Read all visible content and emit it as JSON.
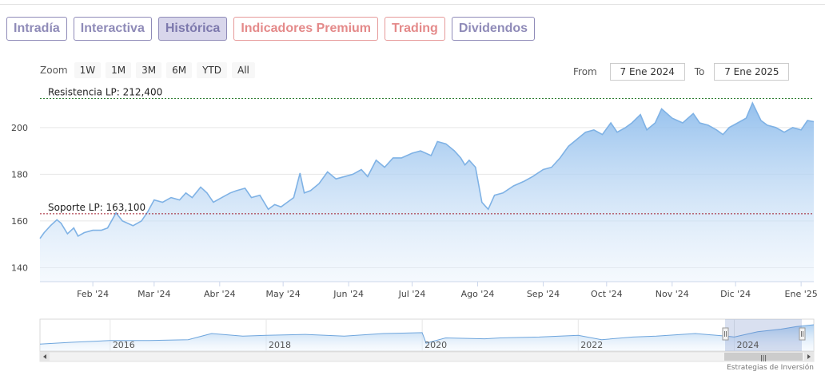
{
  "tabs": [
    {
      "label": "Intradía",
      "style": "normal"
    },
    {
      "label": "Interactiva",
      "style": "normal"
    },
    {
      "label": "Histórica",
      "style": "active"
    },
    {
      "label": "Indicadores Premium",
      "style": "premium"
    },
    {
      "label": "Trading",
      "style": "premium"
    },
    {
      "label": "Dividendos",
      "style": "normal"
    }
  ],
  "zoom": {
    "label": "Zoom",
    "buttons": [
      "1W",
      "1M",
      "3M",
      "6M",
      "YTD",
      "All"
    ]
  },
  "range": {
    "from_label": "From",
    "from_value": "7 Ene 2024",
    "to_label": "To",
    "to_value": "7 Ene 2025"
  },
  "credit": "Estrategias de Inversión",
  "colors": {
    "line": "#7fb2e5",
    "fill_top": "#90c0ef",
    "resistance": "#2e7d32",
    "support": "#a0192a"
  },
  "chart_data": {
    "type": "area",
    "title": "",
    "xlabel": "",
    "ylabel": "",
    "ylim": [
      134,
      216
    ],
    "yticks": [
      140,
      160,
      180,
      200
    ],
    "x_range": [
      "2024-01-07",
      "2025-01-07"
    ],
    "x_ticks": [
      {
        "date": "2024-02-01",
        "label": "Feb '24"
      },
      {
        "date": "2024-03-01",
        "label": "Mar '24"
      },
      {
        "date": "2024-04-01",
        "label": "Abr '24"
      },
      {
        "date": "2024-05-01",
        "label": "May '24"
      },
      {
        "date": "2024-06-01",
        "label": "Jun '24"
      },
      {
        "date": "2024-07-01",
        "label": "Jul '24"
      },
      {
        "date": "2024-08-01",
        "label": "Ago '24"
      },
      {
        "date": "2024-09-01",
        "label": "Sep '24"
      },
      {
        "date": "2024-10-01",
        "label": "Oct '24"
      },
      {
        "date": "2024-11-01",
        "label": "Nov '24"
      },
      {
        "date": "2024-12-01",
        "label": "Dic '24"
      },
      {
        "date": "2025-01-01",
        "label": "Ene '25"
      }
    ],
    "annotations": [
      {
        "label": "Resistencia LP: 212,400",
        "value": 212.4,
        "color": "resistance"
      },
      {
        "label": "Soporte LP: 163,100",
        "value": 163.1,
        "color": "support"
      }
    ],
    "series": [
      {
        "points": [
          [
            "2024-01-07",
            152.5
          ],
          [
            "2024-01-09",
            155
          ],
          [
            "2024-01-12",
            158
          ],
          [
            "2024-01-15",
            160.5
          ],
          [
            "2024-01-17",
            159
          ],
          [
            "2024-01-20",
            154.5
          ],
          [
            "2024-01-23",
            157
          ],
          [
            "2024-01-25",
            153.5
          ],
          [
            "2024-01-28",
            155
          ],
          [
            "2024-02-01",
            156
          ],
          [
            "2024-02-05",
            156
          ],
          [
            "2024-02-08",
            157
          ],
          [
            "2024-02-12",
            163.5
          ],
          [
            "2024-02-15",
            160
          ],
          [
            "2024-02-20",
            158
          ],
          [
            "2024-02-24",
            160
          ],
          [
            "2024-02-27",
            164
          ],
          [
            "2024-03-01",
            169
          ],
          [
            "2024-03-05",
            168
          ],
          [
            "2024-03-09",
            170
          ],
          [
            "2024-03-13",
            169
          ],
          [
            "2024-03-16",
            172
          ],
          [
            "2024-03-19",
            170
          ],
          [
            "2024-03-23",
            174.5
          ],
          [
            "2024-03-26",
            172
          ],
          [
            "2024-03-29",
            168
          ],
          [
            "2024-04-02",
            170
          ],
          [
            "2024-04-06",
            172
          ],
          [
            "2024-04-09",
            173
          ],
          [
            "2024-04-13",
            174
          ],
          [
            "2024-04-16",
            170
          ],
          [
            "2024-04-20",
            171
          ],
          [
            "2024-04-24",
            165
          ],
          [
            "2024-04-27",
            167
          ],
          [
            "2024-04-30",
            166
          ],
          [
            "2024-05-03",
            168
          ],
          [
            "2024-05-06",
            170
          ],
          [
            "2024-05-09",
            180.5
          ],
          [
            "2024-05-11",
            172
          ],
          [
            "2024-05-14",
            173
          ],
          [
            "2024-05-18",
            176
          ],
          [
            "2024-05-22",
            181
          ],
          [
            "2024-05-26",
            178
          ],
          [
            "2024-05-30",
            179
          ],
          [
            "2024-06-03",
            180
          ],
          [
            "2024-06-07",
            182
          ],
          [
            "2024-06-10",
            179
          ],
          [
            "2024-06-14",
            186
          ],
          [
            "2024-06-18",
            183
          ],
          [
            "2024-06-22",
            187
          ],
          [
            "2024-06-26",
            187
          ],
          [
            "2024-07-01",
            189
          ],
          [
            "2024-07-05",
            190
          ],
          [
            "2024-07-10",
            188
          ],
          [
            "2024-07-13",
            194
          ],
          [
            "2024-07-17",
            193
          ],
          [
            "2024-07-21",
            190
          ],
          [
            "2024-07-24",
            187
          ],
          [
            "2024-07-26",
            184
          ],
          [
            "2024-07-28",
            186
          ],
          [
            "2024-07-31",
            183
          ],
          [
            "2024-08-03",
            168
          ],
          [
            "2024-08-06",
            165
          ],
          [
            "2024-08-09",
            171
          ],
          [
            "2024-08-13",
            172
          ],
          [
            "2024-08-18",
            175
          ],
          [
            "2024-08-23",
            177
          ],
          [
            "2024-08-27",
            179
          ],
          [
            "2024-09-01",
            182
          ],
          [
            "2024-09-05",
            183
          ],
          [
            "2024-09-09",
            187
          ],
          [
            "2024-09-13",
            192
          ],
          [
            "2024-09-17",
            195
          ],
          [
            "2024-09-21",
            198
          ],
          [
            "2024-09-25",
            199
          ],
          [
            "2024-09-29",
            197
          ],
          [
            "2024-10-03",
            202
          ],
          [
            "2024-10-06",
            198
          ],
          [
            "2024-10-10",
            200
          ],
          [
            "2024-10-13",
            202
          ],
          [
            "2024-10-17",
            205.5
          ],
          [
            "2024-10-20",
            199
          ],
          [
            "2024-10-24",
            202
          ],
          [
            "2024-10-27",
            208
          ],
          [
            "2024-11-01",
            204
          ],
          [
            "2024-11-06",
            202
          ],
          [
            "2024-11-11",
            206
          ],
          [
            "2024-11-14",
            202
          ],
          [
            "2024-11-18",
            201
          ],
          [
            "2024-11-22",
            199
          ],
          [
            "2024-11-25",
            197
          ],
          [
            "2024-11-28",
            200
          ],
          [
            "2024-12-02",
            202
          ],
          [
            "2024-12-06",
            204
          ],
          [
            "2024-12-09",
            210.5
          ],
          [
            "2024-12-13",
            203
          ],
          [
            "2024-12-16",
            201
          ],
          [
            "2024-12-20",
            200
          ],
          [
            "2024-12-24",
            198
          ],
          [
            "2024-12-28",
            200
          ],
          [
            "2025-01-01",
            199
          ],
          [
            "2025-01-04",
            203
          ],
          [
            "2025-01-07",
            202.5
          ]
        ]
      }
    ]
  },
  "navigator": {
    "year_labels": [
      "2016",
      "2018",
      "2020",
      "2022",
      "2024"
    ],
    "scroll_grip": "|||"
  }
}
